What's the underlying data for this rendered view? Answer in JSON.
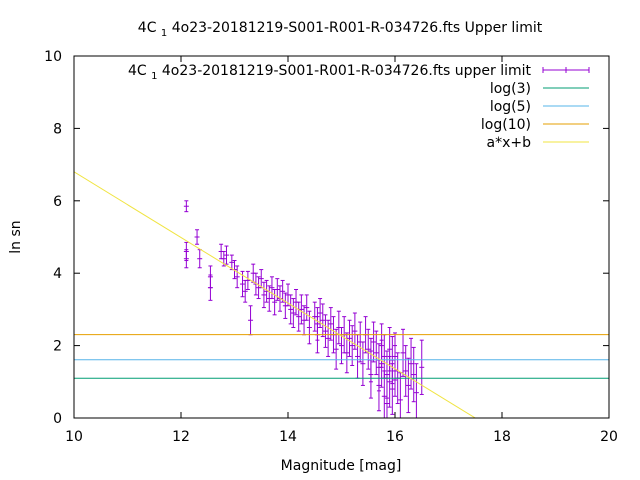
{
  "chart_data": {
    "type": "scatter",
    "title": "4C 1 4o23-20181219-S001-R001-R-034726.fts Upper limit",
    "title_parts": {
      "pre": "4C ",
      "sub": "1",
      "post": " 4o23-20181219-S001-R001-R-034726.fts Upper limit"
    },
    "xlabel": "Magnitude [mag]",
    "ylabel": "ln sn",
    "xlim": [
      10,
      20
    ],
    "ylim": [
      0,
      10
    ],
    "xticks": [
      10,
      12,
      14,
      16,
      18,
      20
    ],
    "yticks": [
      0,
      2,
      4,
      6,
      8,
      10
    ],
    "grid": false,
    "legend_position": "top-right",
    "series": [
      {
        "name": "4C 1 4o23-20181219-S001-R001-R-034726.fts upper limit",
        "name_parts": {
          "pre": "4C ",
          "sub": "1",
          "post": " 4o23-20181219-S001-R001-R-034726.fts upper limit"
        },
        "kind": "errorbar",
        "color": "#9400d3",
        "x": [
          12.1,
          12.1,
          12.1,
          12.3,
          12.35,
          12.55,
          12.55,
          12.75,
          12.8,
          12.85,
          12.95,
          13.0,
          13.05,
          13.15,
          13.2,
          13.25,
          13.3,
          13.35,
          13.4,
          13.45,
          13.5,
          13.55,
          13.6,
          13.65,
          13.7,
          13.75,
          13.8,
          13.85,
          13.9,
          13.95,
          14.0,
          14.05,
          14.1,
          14.15,
          14.2,
          14.25,
          14.3,
          14.35,
          14.4,
          14.5,
          14.55,
          14.55,
          14.6,
          14.65,
          14.7,
          14.75,
          14.8,
          14.85,
          14.9,
          14.95,
          15.0,
          15.05,
          15.1,
          15.15,
          15.2,
          15.25,
          15.3,
          15.35,
          15.4,
          15.45,
          15.5,
          15.55,
          15.55,
          15.6,
          15.65,
          15.7,
          15.7,
          15.75,
          15.75,
          15.8,
          15.8,
          15.85,
          15.85,
          15.9,
          15.9,
          15.95,
          15.95,
          16.0,
          16.0,
          16.05,
          16.1,
          16.15,
          16.2,
          16.25,
          16.3,
          16.35,
          16.4,
          16.5
        ],
        "y": [
          5.85,
          4.6,
          4.4,
          5.0,
          4.4,
          3.9,
          3.6,
          4.6,
          4.4,
          4.5,
          4.3,
          4.1,
          3.9,
          3.7,
          3.5,
          3.8,
          2.7,
          4.0,
          3.7,
          3.6,
          3.85,
          3.4,
          3.5,
          3.3,
          3.6,
          3.2,
          3.55,
          3.3,
          3.5,
          3.1,
          3.4,
          3.0,
          2.9,
          3.2,
          2.8,
          3.0,
          2.7,
          3.05,
          2.5,
          2.8,
          2.6,
          2.3,
          2.9,
          2.7,
          2.4,
          2.2,
          2.6,
          2.3,
          1.9,
          2.5,
          2.0,
          2.3,
          1.8,
          2.2,
          2.0,
          2.4,
          1.7,
          2.1,
          1.5,
          2.3,
          1.9,
          1.6,
          1.2,
          2.1,
          1.8,
          1.4,
          0.9,
          2.0,
          1.5,
          1.7,
          0.6,
          1.2,
          0.4,
          1.9,
          1.0,
          1.6,
          0.8,
          1.3,
          1.7,
          1.1,
          0.5,
          1.8,
          1.3,
          0.9,
          1.5,
          1.2,
          0.7,
          1.4
        ],
        "err": [
          0.15,
          0.25,
          0.25,
          0.2,
          0.25,
          0.3,
          0.35,
          0.2,
          0.2,
          0.25,
          0.2,
          0.25,
          0.3,
          0.35,
          0.3,
          0.25,
          0.4,
          0.25,
          0.3,
          0.3,
          0.25,
          0.35,
          0.3,
          0.35,
          0.3,
          0.35,
          0.3,
          0.35,
          0.3,
          0.35,
          0.3,
          0.4,
          0.4,
          0.35,
          0.4,
          0.4,
          0.4,
          0.35,
          0.45,
          0.4,
          0.45,
          0.5,
          0.4,
          0.45,
          0.45,
          0.5,
          0.45,
          0.5,
          0.55,
          0.45,
          0.5,
          0.5,
          0.55,
          0.5,
          0.55,
          0.5,
          0.6,
          0.55,
          0.6,
          0.5,
          0.55,
          0.6,
          0.65,
          0.55,
          0.6,
          0.65,
          0.7,
          0.6,
          0.65,
          0.6,
          0.7,
          0.65,
          0.7,
          0.6,
          0.7,
          0.65,
          0.7,
          0.7,
          0.65,
          0.7,
          0.75,
          0.65,
          0.7,
          0.75,
          0.7,
          0.75,
          0.8,
          0.75
        ]
      },
      {
        "name": "log(3)",
        "kind": "hline",
        "y": 1.0986,
        "color": "#009e73"
      },
      {
        "name": "log(5)",
        "kind": "hline",
        "y": 1.6094,
        "color": "#56b4e9"
      },
      {
        "name": "log(10)",
        "kind": "hline",
        "y": 2.3026,
        "color": "#e69f00"
      },
      {
        "name": "a*x+b",
        "kind": "line",
        "slope": -0.90667,
        "intercept": 15.8667,
        "color": "#f0e442"
      }
    ]
  }
}
